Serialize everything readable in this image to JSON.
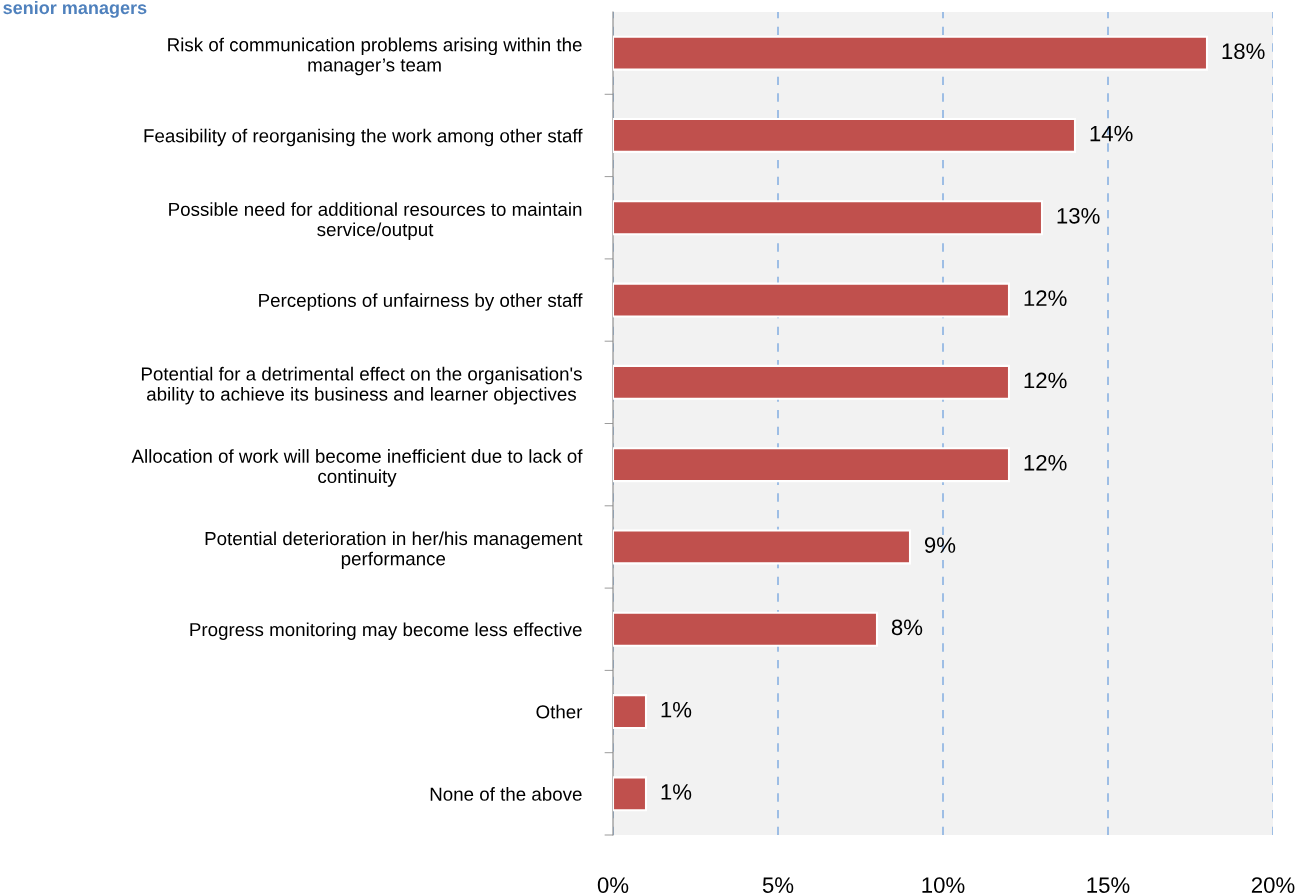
{
  "chart_data": {
    "type": "bar",
    "orientation": "horizontal",
    "title": "senior managers",
    "categories": [
      "Risk of communication problems arising within the\nmanager’s team",
      "Feasibility of reorganising the work among other staff",
      "Possible need for additional resources to maintain\nservice/output",
      "Perceptions of unfairness by other staff",
      "Potential for a detrimental effect on the organisation's\nability to achieve its business and learner objectives",
      "Allocation of work will become inefficient due to lack of\ncontinuity",
      "Potential deterioration in her/his management\nperformance",
      "Progress monitoring may become less effective",
      "Other",
      "None of the above"
    ],
    "values": [
      18,
      14,
      13,
      12,
      12,
      12,
      9,
      8,
      1,
      1
    ],
    "value_labels": [
      "18%",
      "14%",
      "13%",
      "12%",
      "12%",
      "12%",
      "9%",
      "8%",
      "1%",
      "1%"
    ],
    "color": "#c0504d",
    "xlim": [
      0,
      20
    ],
    "xticks": [
      {
        "value": 0,
        "label": "0%"
      },
      {
        "value": 5,
        "label": "5%"
      },
      {
        "value": 10,
        "label": "10%"
      },
      {
        "value": 15,
        "label": "15%"
      },
      {
        "value": 20,
        "label": "20%"
      }
    ],
    "grid": "x",
    "legend": false
  }
}
